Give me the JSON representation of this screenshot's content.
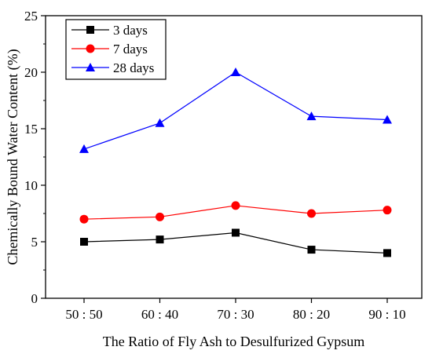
{
  "chart_data": {
    "type": "line",
    "categories": [
      "50 : 50",
      "60 : 40",
      "70 : 30",
      "80 : 20",
      "90 : 10"
    ],
    "series": [
      {
        "name": "3 days",
        "values": [
          5.0,
          5.2,
          5.8,
          4.3,
          4.0
        ],
        "color": "#000000",
        "marker": "square"
      },
      {
        "name": "7 days",
        "values": [
          7.0,
          7.2,
          8.2,
          7.5,
          7.8
        ],
        "color": "#ff0000",
        "marker": "circle"
      },
      {
        "name": "28 days",
        "values": [
          13.2,
          15.5,
          20.0,
          16.1,
          15.8
        ],
        "color": "#0000ff",
        "marker": "triangle"
      }
    ],
    "xlabel": "The Ratio of Fly Ash to Desulfurized Gypsum",
    "ylabel": "Chemically Bound Water Content (%)",
    "ylim": [
      0,
      25
    ],
    "yticks": [
      "0",
      "5",
      "10",
      "15",
      "20",
      "25"
    ],
    "grid": false,
    "legend_position": "top-left"
  }
}
